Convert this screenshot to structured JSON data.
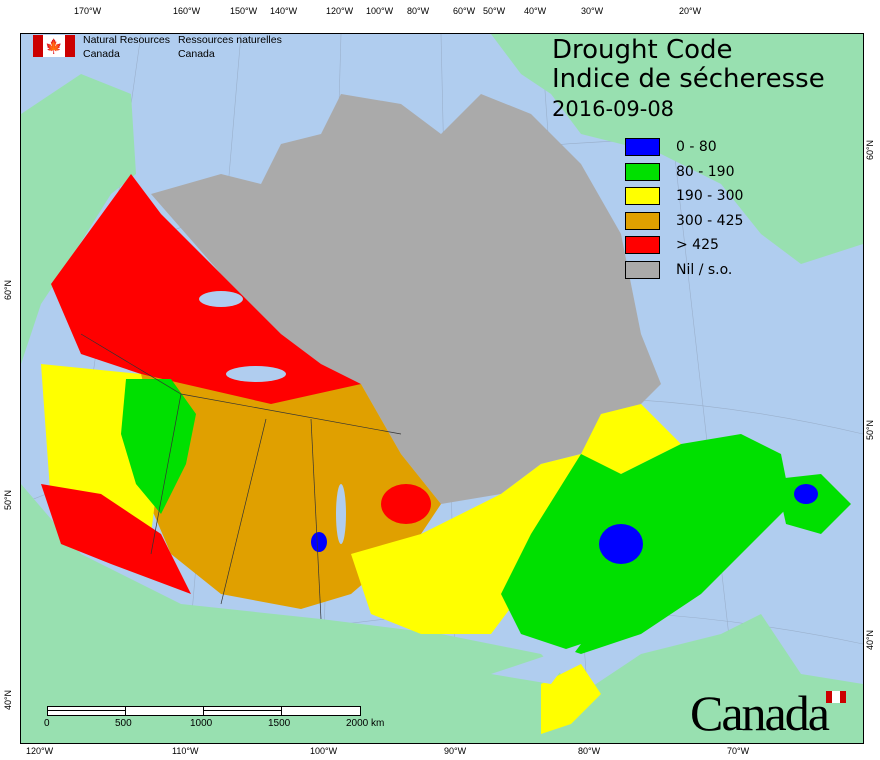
{
  "header": {
    "org_en": [
      "Natural Resources",
      "Canada"
    ],
    "org_fr": [
      "Ressources naturelles",
      "Canada"
    ]
  },
  "title": {
    "en": "Drought Code",
    "fr": "Indice de sécheresse",
    "date": "2016-09-08"
  },
  "legend": [
    {
      "label": "0 - 80",
      "color": "#0000ff"
    },
    {
      "label": "80 - 190",
      "color": "#00e000"
    },
    {
      "label": "190 - 300",
      "color": "#ffff00"
    },
    {
      "label": "300 - 425",
      "color": "#e0a000"
    },
    {
      "label": "> 425",
      "color": "#ff0000"
    },
    {
      "label": "Nil / s.o.",
      "color": "#aaaaaa"
    }
  ],
  "axes": {
    "top": [
      "170°W",
      "160°W",
      "150°W",
      "140°W",
      "120°W",
      "100°W",
      "80°W",
      "60°W",
      "50°W",
      "40°W",
      "30°W",
      "20°W"
    ],
    "bottom": [
      "120°W",
      "110°W",
      "100°W",
      "90°W",
      "80°W",
      "70°W"
    ],
    "left": [
      "60°N",
      "50°N",
      "40°N"
    ],
    "right": [
      "60°N",
      "50°N",
      "40°N"
    ]
  },
  "scale_bar": {
    "labels": [
      "0",
      "500",
      "1000",
      "1500",
      "2000 km"
    ]
  },
  "wordmark": "Canada",
  "colors": {
    "water": "#b0cdef",
    "land": "#98e0b0",
    "nodata": "#aaaaaa"
  }
}
